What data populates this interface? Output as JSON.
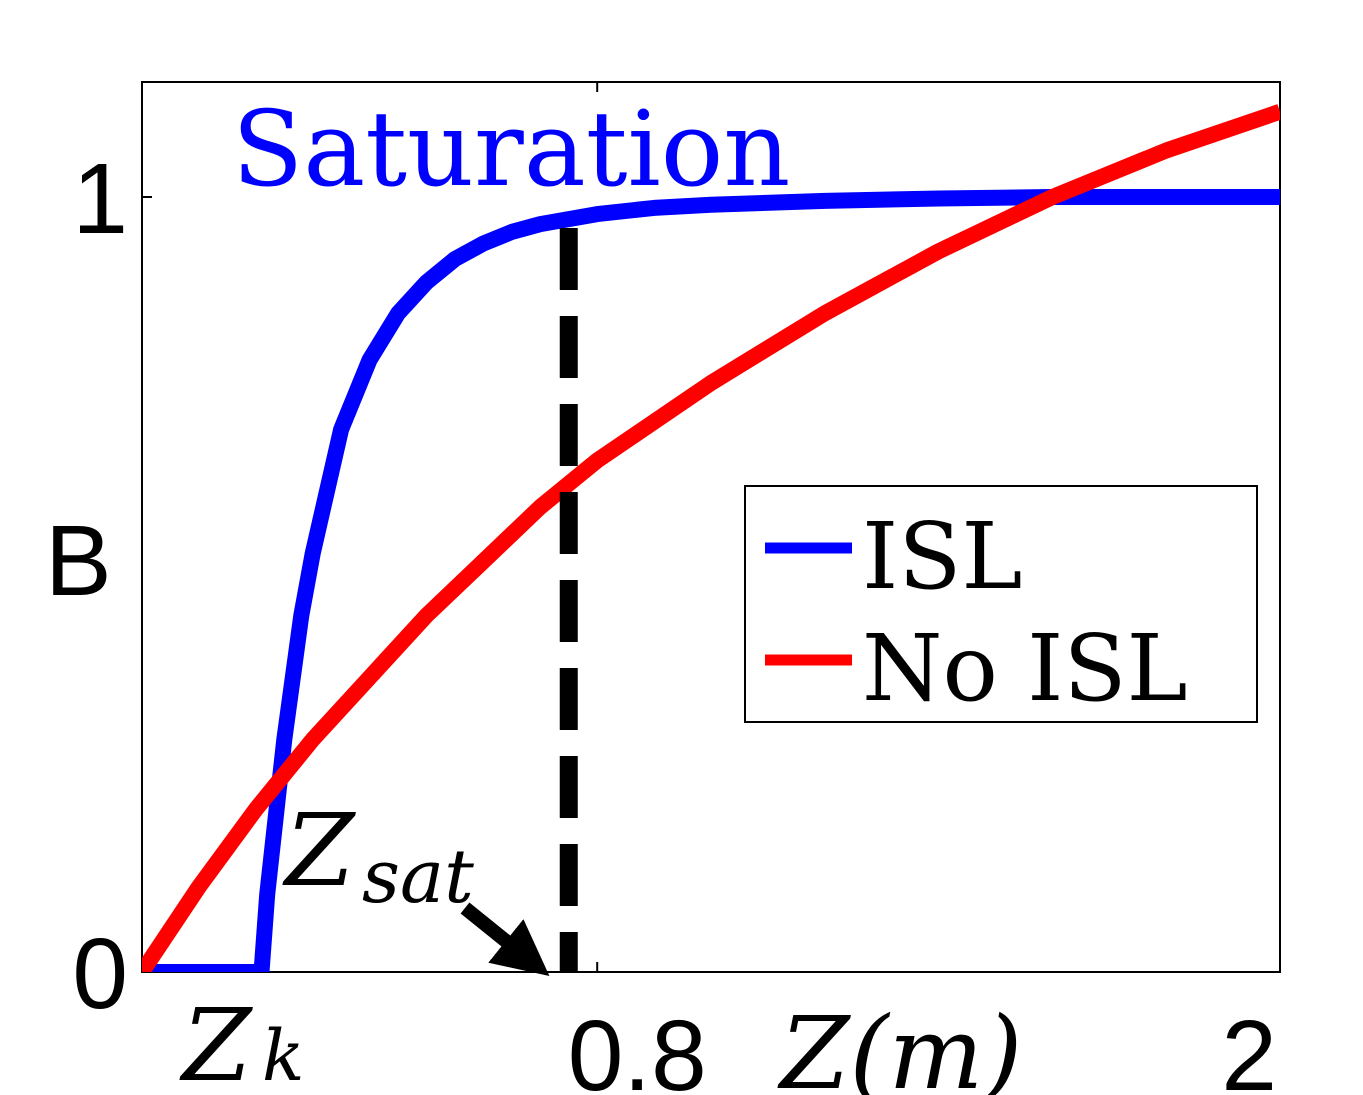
{
  "chart_data": {
    "type": "line",
    "title": "Saturation",
    "title_color": "#0000ff",
    "xlabel": "Z(m)",
    "ylabel": "B",
    "xlim": [
      0,
      2
    ],
    "ylim": [
      0,
      1.15
    ],
    "xticks": [
      {
        "value": 0.8,
        "label": "0.8"
      },
      {
        "value": 2,
        "label": "2"
      }
    ],
    "yticks": [
      {
        "value": 0,
        "label": "0"
      },
      {
        "value": 1,
        "label": "1"
      }
    ],
    "legend_position": "center-right",
    "grid": false,
    "series": [
      {
        "name": "ISL",
        "color": "#0000ff",
        "x": [
          0,
          0.21,
          0.22,
          0.25,
          0.28,
          0.3,
          0.35,
          0.4,
          0.45,
          0.5,
          0.55,
          0.6,
          0.65,
          0.7,
          0.8,
          0.9,
          1.0,
          1.2,
          1.4,
          1.6,
          2.0
        ],
        "y": [
          0,
          0,
          0.1,
          0.3,
          0.46,
          0.54,
          0.7,
          0.79,
          0.85,
          0.89,
          0.92,
          0.94,
          0.955,
          0.965,
          0.978,
          0.986,
          0.99,
          0.995,
          0.998,
          1.0,
          1.0
        ]
      },
      {
        "name": "No ISL",
        "color": "#ff0000",
        "x": [
          0,
          0.1,
          0.2,
          0.3,
          0.4,
          0.5,
          0.6,
          0.7,
          0.8,
          0.9,
          1.0,
          1.2,
          1.4,
          1.6,
          1.8,
          2.0
        ],
        "y": [
          0,
          0.11,
          0.21,
          0.3,
          0.38,
          0.46,
          0.53,
          0.6,
          0.66,
          0.71,
          0.76,
          0.85,
          0.93,
          1.0,
          1.06,
          1.11
        ]
      }
    ],
    "annotations": [
      {
        "kind": "vline",
        "x": 0.75,
        "y_top": 0.96,
        "style": "dashed",
        "color": "#000000"
      },
      {
        "kind": "text",
        "text": "Z",
        "subscript": "sat"
      },
      {
        "kind": "text",
        "text": "Z",
        "subscript": "k"
      }
    ]
  }
}
